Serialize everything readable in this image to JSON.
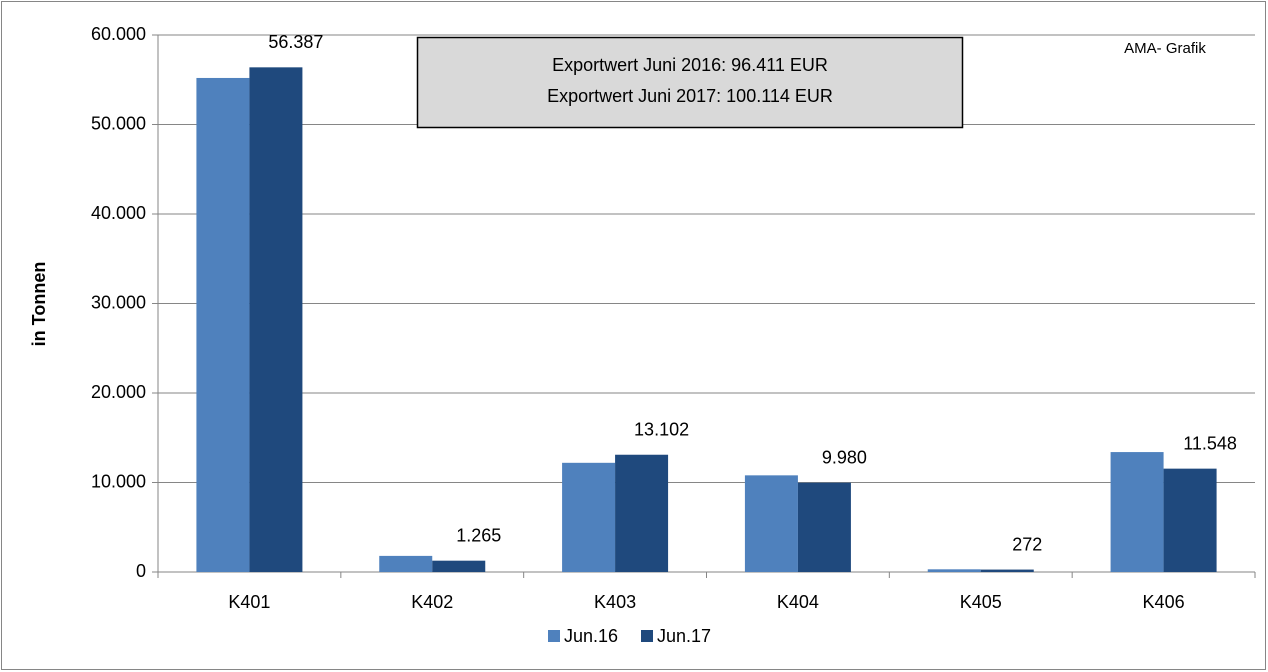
{
  "chart_data": {
    "type": "bar",
    "annotations": [
      "Exportwert Juni 2016:  96.411 EUR",
      "Exportwert  Juni 2017: 100.114 EUR",
      "AMA- Grafik"
    ],
    "ylabel": "in Tonnen",
    "categories": [
      "K401",
      "K402",
      "K403",
      "K404",
      "K405",
      "K406"
    ],
    "series": [
      {
        "name": "Jun.16",
        "color": "#4f81bd",
        "values": [
          55200,
          1800,
          12200,
          10800,
          300,
          13400
        ]
      },
      {
        "name": "Jun.17",
        "color": "#1f497d",
        "values": [
          56387,
          1265,
          13102,
          9980,
          272,
          11548
        ],
        "value_labels": [
          "56.387",
          "1.265",
          "13.102",
          "9.980",
          "272",
          "11.548"
        ]
      }
    ],
    "ylim": [
      0,
      60000
    ],
    "yticks": [
      0,
      {
        "value": 10000,
        "label": "10.000"
      },
      {
        "value": 20000,
        "label": "20.000"
      },
      {
        "value": 30000,
        "label": "30.000"
      },
      {
        "value": 40000,
        "label": "40.000"
      },
      {
        "value": 50000,
        "label": "50.000"
      },
      {
        "value": 60000,
        "label": "60.000"
      }
    ],
    "grid": true,
    "legend": "bottom"
  }
}
